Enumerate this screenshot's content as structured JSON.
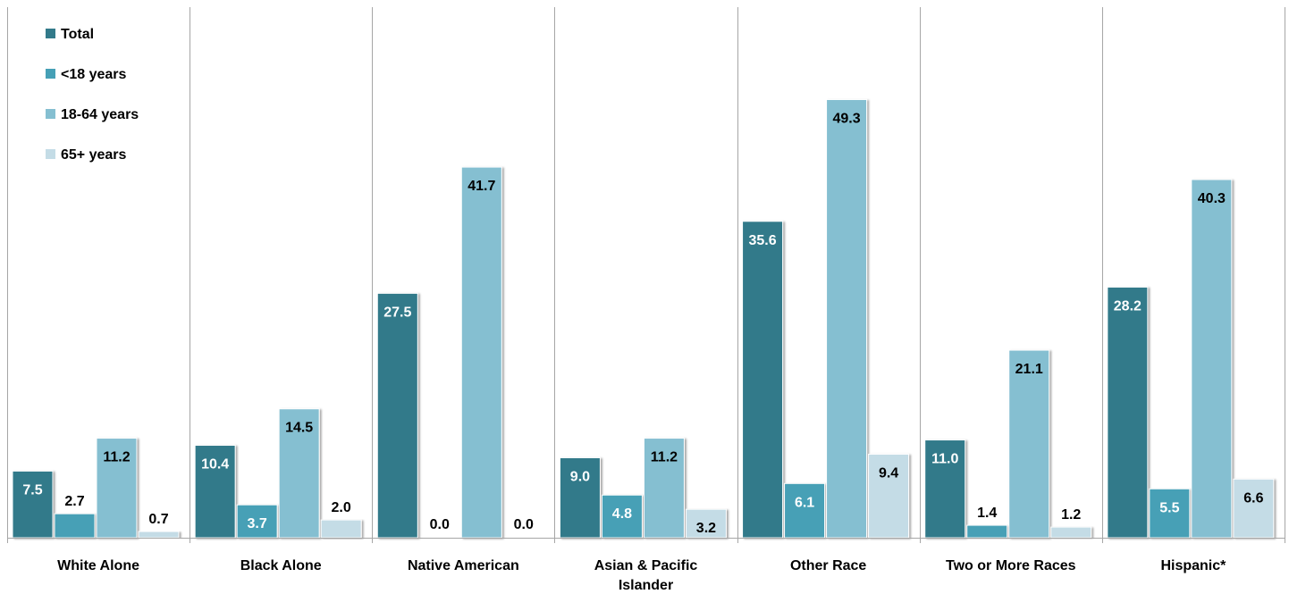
{
  "chart_data": {
    "type": "bar",
    "categories": [
      "White Alone",
      "Black Alone",
      "Native American",
      "Asian & Pacific Islander",
      "Other Race",
      "Two or More Races",
      "Hispanic*"
    ],
    "series": [
      {
        "name": "Total",
        "color": "#327a8a",
        "values": [
          7.5,
          10.4,
          27.5,
          9.0,
          35.6,
          11.0,
          28.2
        ]
      },
      {
        "name": "<18 years",
        "color": "#46a0b6",
        "values": [
          2.7,
          3.7,
          0.0,
          4.8,
          6.1,
          1.4,
          5.5
        ]
      },
      {
        "name": "18-64 years",
        "color": "#85bfd1",
        "values": [
          11.2,
          14.5,
          41.7,
          11.2,
          49.3,
          21.1,
          40.3
        ]
      },
      {
        "name": "65+ years",
        "color": "#c4dce6",
        "values": [
          0.7,
          2.0,
          0.0,
          3.2,
          9.4,
          1.2,
          6.6
        ]
      }
    ],
    "ylim": [
      0,
      50
    ],
    "grid": false,
    "legend": "top-left"
  }
}
